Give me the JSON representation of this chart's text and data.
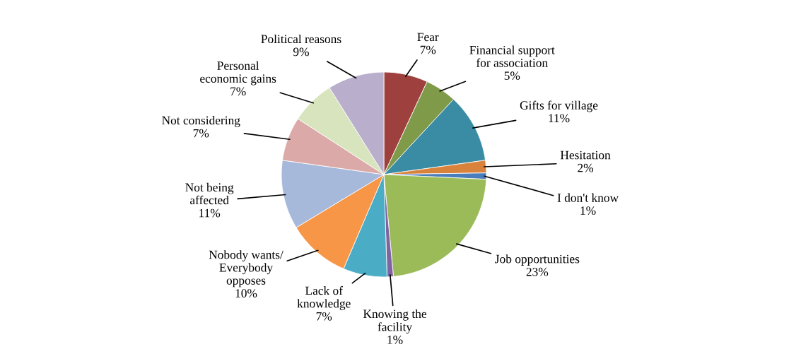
{
  "chart_data": {
    "type": "pie",
    "categories": [
      "Fear",
      "Financial support\nfor association",
      "Gifts for village",
      "Hesitation",
      "I don't know",
      "Job opportunities",
      "Knowing the\nfacility",
      "Lack of\nknowledge",
      "Nobody wants/\nEverybody\nopposes",
      "Not being\naffected",
      "Not considering",
      "Personal\neconomic gains",
      "Political reasons"
    ],
    "values": [
      7,
      5,
      11,
      2,
      1,
      23,
      1,
      7,
      10,
      11,
      7,
      7,
      9
    ],
    "colors": [
      "#9e413e",
      "#7f9a48",
      "#3a8ba4",
      "#d9823b",
      "#4a7dbb",
      "#9bbb59",
      "#8064a2",
      "#4bacc6",
      "#f79646",
      "#a7b9db",
      "#dba9a8",
      "#d7e4bd",
      "#b9aecb"
    ],
    "value_labels": [
      "7%",
      "5%",
      "11%",
      "2%",
      "1%",
      "23%",
      "1%",
      "7%",
      "10%",
      "11%",
      "7%",
      "7%",
      "9%"
    ]
  }
}
